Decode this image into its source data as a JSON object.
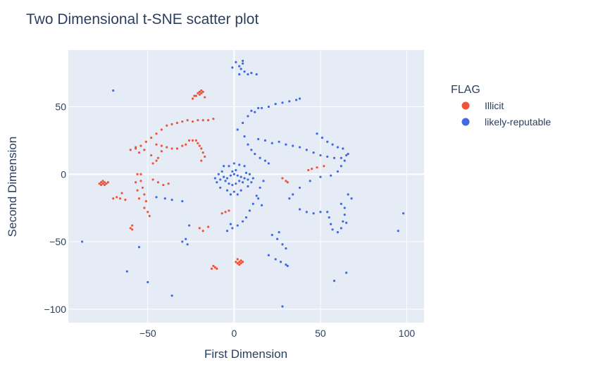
{
  "chart_data": {
    "type": "scatter",
    "title": "Two Dimensional t-SNE scatter plot",
    "xlabel": "First Dimension",
    "ylabel": "Second Dimension",
    "xlim": [
      -96,
      110
    ],
    "ylim": [
      -110,
      92
    ],
    "x_ticks": [
      -50,
      0,
      50,
      100
    ],
    "x_tick_labels": [
      "−50",
      "0",
      "50",
      "100"
    ],
    "y_ticks": [
      -100,
      -50,
      0,
      50
    ],
    "y_tick_labels": [
      "−100",
      "−50",
      "0",
      "50"
    ],
    "grid": true,
    "legend": {
      "title": "FLAG",
      "placement": "right"
    },
    "series": [
      {
        "name": "Illicit",
        "color": "#ef553b",
        "points": [
          [
            -20,
            61
          ],
          [
            -19,
            60
          ],
          [
            -21,
            60
          ],
          [
            -20,
            59
          ],
          [
            -18,
            61
          ],
          [
            -19,
            62
          ],
          [
            -22,
            58
          ],
          [
            -17,
            57
          ],
          [
            -23,
            58
          ],
          [
            -24,
            56
          ],
          [
            -76,
            -7
          ],
          [
            -75,
            -6
          ],
          [
            -77,
            -6
          ],
          [
            -74,
            -7
          ],
          [
            -76,
            -5
          ],
          [
            -78,
            -7
          ],
          [
            -75,
            -8
          ],
          [
            -73,
            -6
          ],
          [
            -77,
            -8
          ],
          [
            -65,
            -14
          ],
          [
            -68,
            -17
          ],
          [
            -70,
            -18
          ],
          [
            -63,
            -19
          ],
          [
            -66,
            -18
          ],
          [
            3,
            -65
          ],
          [
            2,
            -66
          ],
          [
            4,
            -64
          ],
          [
            1,
            -65
          ],
          [
            3,
            -67
          ],
          [
            5,
            -65
          ],
          [
            2,
            -63
          ],
          [
            4,
            -66
          ],
          [
            -10,
            -70
          ],
          [
            -12,
            -68
          ],
          [
            -13,
            -70
          ],
          [
            -11,
            -69
          ],
          [
            -60,
            -40
          ],
          [
            -59,
            -41
          ],
          [
            -59,
            -38
          ],
          [
            -20,
            -40
          ],
          [
            -15,
            -39
          ],
          [
            -18,
            -42
          ],
          [
            -5,
            -28
          ],
          [
            -7,
            -29
          ],
          [
            -3,
            -27
          ],
          [
            43,
            3
          ],
          [
            45,
            4
          ],
          [
            48,
            5
          ],
          [
            52,
            6
          ],
          [
            30,
            -5
          ],
          [
            31,
            -6
          ],
          [
            28,
            -3
          ],
          [
            -60,
            18
          ],
          [
            -57,
            20
          ],
          [
            -54,
            21
          ],
          [
            -51,
            24
          ],
          [
            -48,
            27
          ],
          [
            -45,
            30
          ],
          [
            -42,
            33
          ],
          [
            -39,
            36
          ],
          [
            -36,
            37
          ],
          [
            -33,
            38
          ],
          [
            -30,
            39
          ],
          [
            -27,
            40
          ],
          [
            -24,
            39
          ],
          [
            -21,
            40
          ],
          [
            -18,
            40
          ],
          [
            -15,
            40
          ],
          [
            -12,
            41
          ],
          [
            -45,
            22
          ],
          [
            -42,
            21
          ],
          [
            -39,
            20
          ],
          [
            -36,
            19
          ],
          [
            -33,
            19
          ],
          [
            -30,
            21
          ],
          [
            -28,
            22
          ],
          [
            -26,
            25
          ],
          [
            -24,
            25
          ],
          [
            -22,
            25
          ],
          [
            -21,
            23
          ],
          [
            -20,
            21
          ],
          [
            -19,
            19
          ],
          [
            -18,
            16
          ],
          [
            -17,
            13
          ],
          [
            -19,
            10
          ],
          [
            -45,
            10
          ],
          [
            -47,
            8
          ],
          [
            -44,
            12
          ],
          [
            -42,
            17
          ],
          [
            -48,
            14
          ],
          [
            -52,
            18
          ],
          [
            -55,
            16
          ],
          [
            -57,
            19
          ],
          [
            -54,
            0
          ],
          [
            -54,
            -5
          ],
          [
            -53,
            -10
          ],
          [
            -52,
            -15
          ],
          [
            -51,
            -20
          ],
          [
            -52,
            -25
          ],
          [
            -50,
            -28
          ],
          [
            -49,
            -31
          ],
          [
            -56,
            0
          ],
          [
            -57,
            -6
          ],
          [
            -56,
            -12
          ],
          [
            -55,
            -18
          ],
          [
            -47,
            -4
          ],
          [
            -44,
            -6
          ],
          [
            -41,
            -8
          ],
          [
            -38,
            -7
          ]
        ]
      },
      {
        "name": "likely-reputable",
        "color": "#4169e1",
        "points": [
          [
            -4,
            -3
          ],
          [
            -2,
            -1
          ],
          [
            0,
            0
          ],
          [
            2,
            -1
          ],
          [
            4,
            -2
          ],
          [
            -5,
            -5
          ],
          [
            -3,
            -7
          ],
          [
            -1,
            -8
          ],
          [
            1,
            -7
          ],
          [
            3,
            -5
          ],
          [
            5,
            -6
          ],
          [
            -6,
            -2
          ],
          [
            6,
            -3
          ],
          [
            -1,
            2
          ],
          [
            1,
            3
          ],
          [
            -8,
            -4
          ],
          [
            8,
            -4
          ],
          [
            -7,
            2
          ],
          [
            7,
            1
          ],
          [
            -3,
            6
          ],
          [
            3,
            7
          ],
          [
            0,
            8
          ],
          [
            -9,
            0
          ],
          [
            9,
            0
          ],
          [
            -8,
            -10
          ],
          [
            8,
            -9
          ],
          [
            -4,
            -12
          ],
          [
            4,
            -12
          ],
          [
            0,
            -13
          ],
          [
            -10,
            -6
          ],
          [
            10,
            -6
          ],
          [
            -6,
            6
          ],
          [
            6,
            6
          ],
          [
            -11,
            -3
          ],
          [
            11,
            -3
          ],
          [
            -2,
            -15
          ],
          [
            2,
            -15
          ],
          [
            3,
            80
          ],
          [
            5,
            82
          ],
          [
            4,
            78
          ],
          [
            6,
            76
          ],
          [
            8,
            74
          ],
          [
            10,
            75
          ],
          [
            13,
            74
          ],
          [
            3,
            74
          ],
          [
            -1,
            79
          ],
          [
            1,
            83
          ],
          [
            5,
            84
          ],
          [
            2,
            33
          ],
          [
            5,
            38
          ],
          [
            8,
            43
          ],
          [
            12,
            46
          ],
          [
            16,
            49
          ],
          [
            20,
            50
          ],
          [
            24,
            52
          ],
          [
            28,
            53
          ],
          [
            32,
            54
          ],
          [
            36,
            55
          ],
          [
            38,
            56
          ],
          [
            10,
            47
          ],
          [
            14,
            49
          ],
          [
            6,
            28
          ],
          [
            8,
            22
          ],
          [
            10,
            18
          ],
          [
            12,
            15
          ],
          [
            15,
            12
          ],
          [
            18,
            10
          ],
          [
            20,
            8
          ],
          [
            14,
            26
          ],
          [
            18,
            25
          ],
          [
            22,
            23
          ],
          [
            26,
            24
          ],
          [
            30,
            22
          ],
          [
            34,
            21
          ],
          [
            38,
            20
          ],
          [
            42,
            18
          ],
          [
            46,
            16
          ],
          [
            50,
            14
          ],
          [
            54,
            13
          ],
          [
            58,
            12
          ],
          [
            62,
            12
          ],
          [
            65,
            14
          ],
          [
            48,
            30
          ],
          [
            51,
            27
          ],
          [
            54,
            24
          ],
          [
            57,
            22
          ],
          [
            60,
            20
          ],
          [
            63,
            19
          ],
          [
            66,
            15
          ],
          [
            64,
            10
          ],
          [
            62,
            6
          ],
          [
            60,
            2
          ],
          [
            56,
            -1
          ],
          [
            50,
            -2
          ],
          [
            44,
            -5
          ],
          [
            38,
            -10
          ],
          [
            34,
            -15
          ],
          [
            32,
            -18
          ],
          [
            17,
            -5
          ],
          [
            15,
            -10
          ],
          [
            13,
            -16
          ],
          [
            11,
            -22
          ],
          [
            9,
            -27
          ],
          [
            7,
            -32
          ],
          [
            5,
            -35
          ],
          [
            2,
            -38
          ],
          [
            -1,
            -40
          ],
          [
            -4,
            -42
          ],
          [
            -2,
            -37
          ],
          [
            14,
            -18
          ],
          [
            16,
            -23
          ],
          [
            22,
            -45
          ],
          [
            25,
            -48
          ],
          [
            28,
            -52
          ],
          [
            30,
            -55
          ],
          [
            26,
            -43
          ],
          [
            20,
            -60
          ],
          [
            24,
            -63
          ],
          [
            27,
            -65
          ],
          [
            30,
            -67
          ],
          [
            31,
            -68
          ],
          [
            38,
            -26
          ],
          [
            42,
            -28
          ],
          [
            46,
            -29
          ],
          [
            50,
            -28
          ],
          [
            54,
            -28
          ],
          [
            55,
            -32
          ],
          [
            56,
            -37
          ],
          [
            57,
            -41
          ],
          [
            60,
            -43
          ],
          [
            62,
            -40
          ],
          [
            63,
            -35
          ],
          [
            64,
            -30
          ],
          [
            64,
            -25
          ],
          [
            62,
            -22
          ],
          [
            66,
            -15
          ],
          [
            68,
            -18
          ],
          [
            65,
            -36
          ],
          [
            -45,
            -17
          ],
          [
            -40,
            -18
          ],
          [
            -36,
            -19
          ],
          [
            -30,
            -20
          ],
          [
            -28,
            -48
          ],
          [
            -30,
            -50
          ],
          [
            -27,
            -52
          ],
          [
            -26,
            -38
          ],
          [
            -70,
            62
          ],
          [
            -50,
            -80
          ],
          [
            -36,
            -90
          ],
          [
            28,
            -98
          ],
          [
            -62,
            -72
          ],
          [
            58,
            -79
          ],
          [
            65,
            -73
          ],
          [
            98,
            -29
          ],
          [
            95,
            -42
          ],
          [
            -88,
            -50
          ],
          [
            -55,
            -54
          ]
        ]
      }
    ]
  }
}
